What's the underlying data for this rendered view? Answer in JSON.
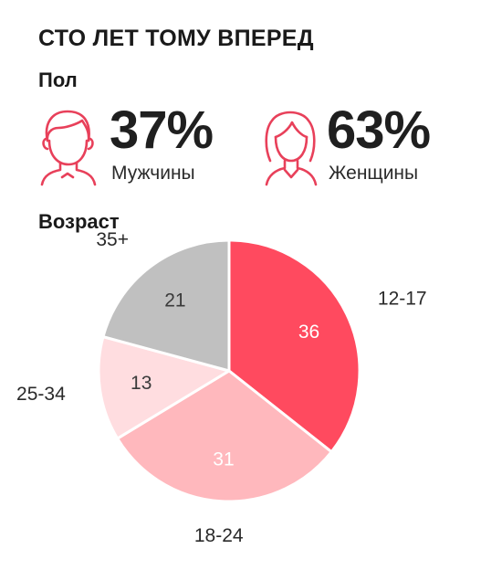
{
  "title": "СТО ЛЕТ ТОМУ ВПЕРЕД",
  "gender": {
    "heading": "Пол",
    "male": {
      "percent": "37%",
      "label": "Мужчины",
      "icon": "male-person-icon"
    },
    "female": {
      "percent": "63%",
      "label": "Женщины",
      "icon": "female-person-icon"
    },
    "icon_color": "#e8405a"
  },
  "age": {
    "heading": "Возраст"
  },
  "chart_data": {
    "type": "pie",
    "title": "Возраст",
    "categories": [
      "12-17",
      "18-24",
      "25-34",
      "35+"
    ],
    "values": [
      36,
      31,
      13,
      21
    ],
    "colors": [
      "#ff4a5f",
      "#ffb8bd",
      "#ffdde0",
      "#c0c0c0"
    ],
    "value_label_colors": [
      "#ffffff",
      "#ffffff",
      "#3a3a3a",
      "#3a3a3a"
    ],
    "start_angle_deg": 0,
    "direction": "clockwise"
  }
}
